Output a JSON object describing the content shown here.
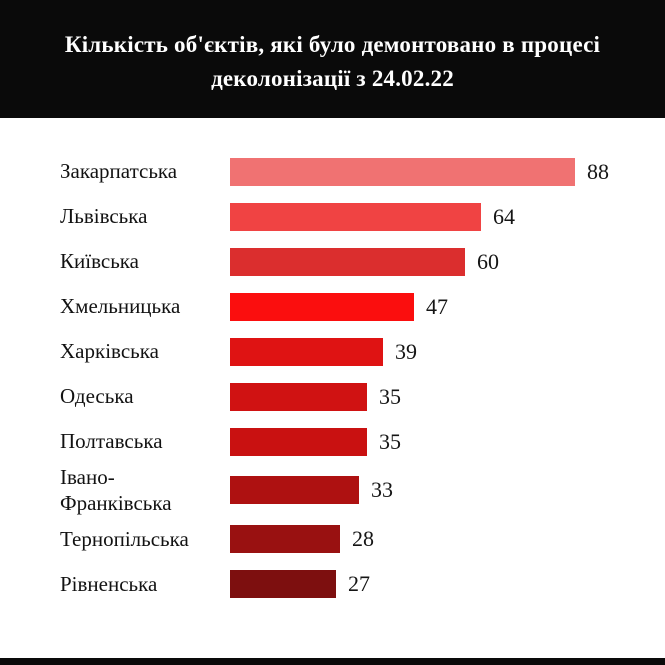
{
  "header": {
    "title_line1": "Кількість об'єктів, які було демонтовано в процесі",
    "title_line2": "деколонізації з 24.02.22",
    "bg_color": "#0a0a0a",
    "text_color": "#ffffff"
  },
  "chart_data": {
    "type": "bar",
    "orientation": "horizontal",
    "title": "Кількість об'єктів, які було демонтовано в процесі деколонізації з 24.02.22",
    "categories": [
      "Закарпатська",
      "Львівська",
      "Київська",
      "Хмельницька",
      "Харківська",
      "Одеська",
      "Полтавська",
      "Івано-Франківська",
      "Тернопільська",
      "Рівненська"
    ],
    "values": [
      88,
      64,
      60,
      47,
      39,
      35,
      35,
      33,
      28,
      27
    ],
    "bar_colors": [
      "#F07272",
      "#F04343",
      "#DB2E2E",
      "#FB0E0E",
      "#DF1313",
      "#D01212",
      "#C91111",
      "#AE1111",
      "#991111",
      "#7D0F0F"
    ],
    "xlim": [
      0,
      88
    ],
    "value_labels_shown": true,
    "grid": false,
    "legend": false,
    "sort_order": "descending"
  }
}
